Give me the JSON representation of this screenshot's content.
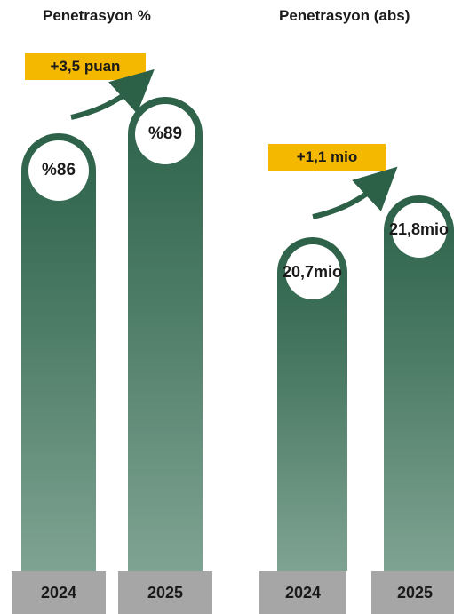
{
  "chart_data": [
    {
      "type": "bar",
      "title": "Penetrasyon %",
      "categories": [
        "2024",
        "2025"
      ],
      "values": [
        86,
        89
      ],
      "value_labels": [
        "%86",
        "%89"
      ],
      "delta_label": "+3,5 puan",
      "colors": {
        "bar_top": "#2c6148",
        "bar_bottom": "#7fa393",
        "badge": "#f5b800",
        "axis_box": "#a6a6a6"
      }
    },
    {
      "type": "bar",
      "title": "Penetrasyon (abs)",
      "categories": [
        "2024",
        "2025"
      ],
      "values": [
        20.7,
        21.8
      ],
      "value_labels": [
        "20,7 mio",
        "21,8 mio"
      ],
      "delta_label": "+1,1 mio",
      "colors": {
        "bar_top": "#2c6148",
        "bar_bottom": "#7fa393",
        "badge": "#f5b800",
        "axis_box": "#a6a6a6"
      }
    }
  ]
}
